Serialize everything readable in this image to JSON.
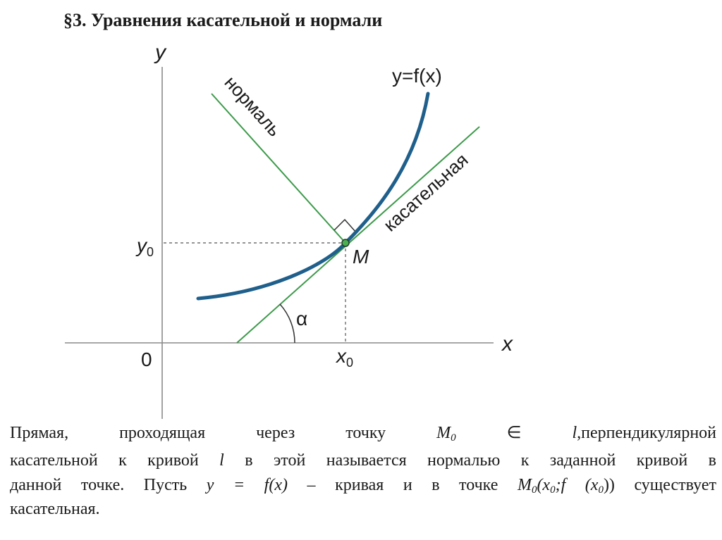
{
  "title": "§3. Уравнения касательной и нормали",
  "figure": {
    "axis_y_label": "y",
    "axis_x_label": "x",
    "origin_label": "0",
    "curve_label": "y=f(x)",
    "normal_label": "нормаль",
    "tangent_label": "касательная",
    "point_label": "M",
    "y0_main": "y",
    "y0_sub": "0",
    "x0_main": "x",
    "x0_sub": "0",
    "angle_label": "α",
    "colors": {
      "curve": "#1f5f8b",
      "lines": "#3c9a4a",
      "text": "#1a1a1a"
    }
  },
  "paragraph": {
    "line1": {
      "w1": "Прямая,",
      "w2": "проходящая",
      "w3": "через",
      "w4": "точку",
      "m_main": "M",
      "m_sub": "0",
      "elem": "∈",
      "l": "l",
      "tail": ",перпендикулярной"
    },
    "line2_a": "касательной к кривой ",
    "line2_l": "l",
    "line2_b": " в этой называется нормалью к заданной кривой в",
    "line3_a": "данной точке. Пусть ",
    "line3_eq": "y = f(x)",
    "line3_b": " – кривая и в точке ",
    "line3_M": "M",
    "line3_Msub": "0",
    "line3_open": "(x",
    "line3_x0sub": "0",
    "line3_semi": ";f (x",
    "line3_x0sub2": "0",
    "line3_close": "))",
    "line3_c": " существует",
    "line4": "касательная."
  }
}
